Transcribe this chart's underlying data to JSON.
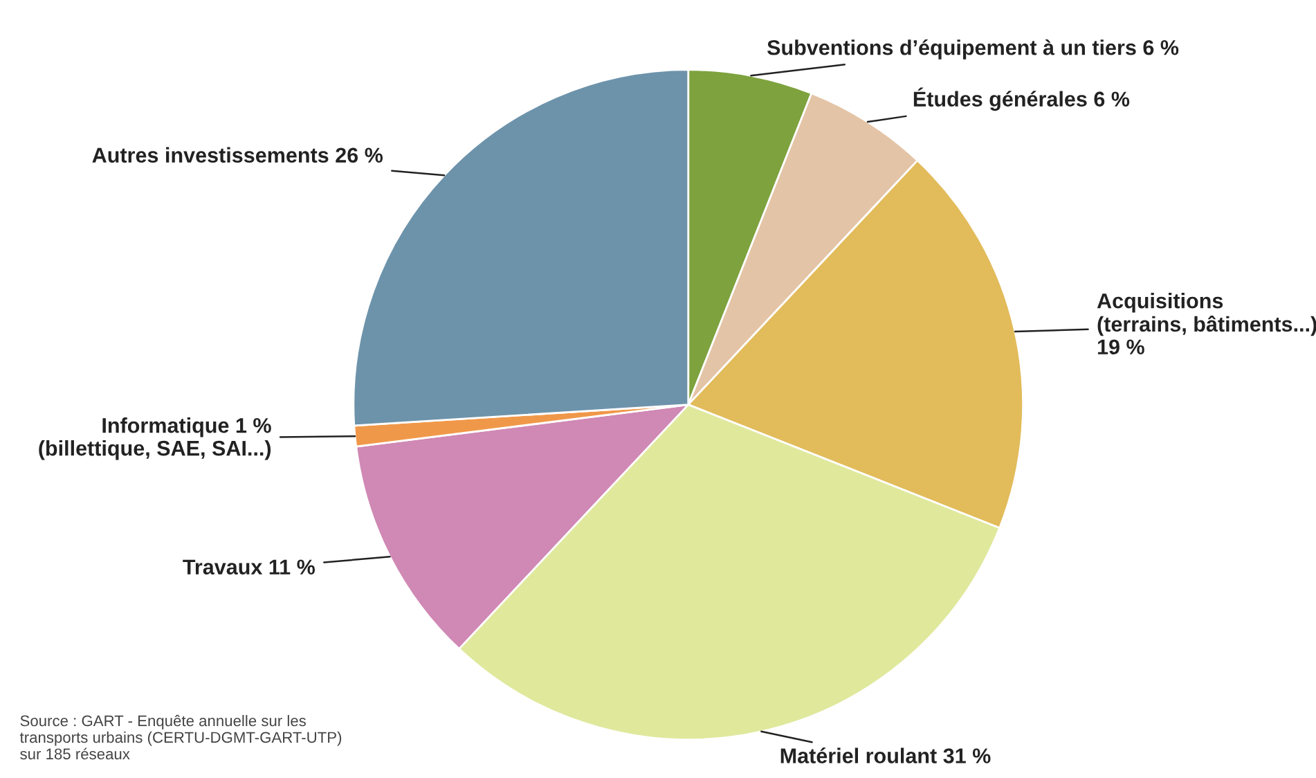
{
  "chart_data": {
    "type": "pie",
    "categories": [
      "Subventions d’équipement à un tiers 6 %",
      "Études générales 6 %",
      "Acquisitions\n(terrains, bâtiments...)\n19 %",
      "Matériel roulant 31 %",
      "Travaux 11 %",
      "Informatique 1 %\n(billettique, SAE, SAI...)",
      "Autres investissements 26 %"
    ],
    "values": [
      6,
      6,
      19,
      31,
      11,
      1,
      26
    ],
    "colors": [
      "#7ea23e",
      "#e4c4a6",
      "#e2bb5a",
      "#e0e89c",
      "#d088b4",
      "#f0984a",
      "#6d93ab"
    ],
    "annotations": [
      "Source : GART - Enquête annuelle sur les\ntransports urbains (CERTU-DGMT-GART-UTP)\nsur 185 réseaux"
    ]
  }
}
